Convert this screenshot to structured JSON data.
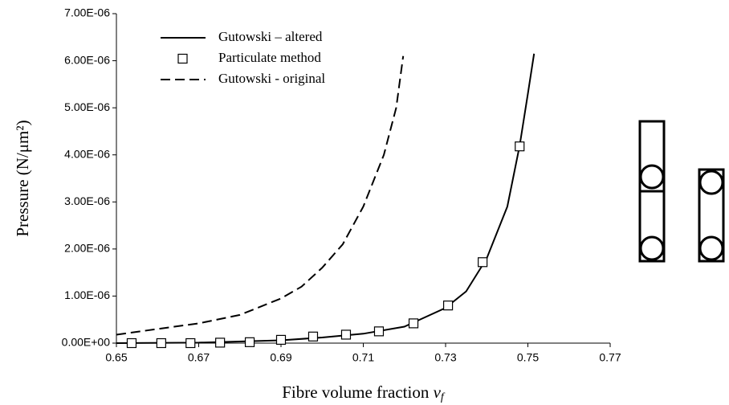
{
  "chart_data": {
    "type": "line",
    "x_label": {
      "text": "Fibre volume fraction",
      "symbol": "v",
      "subscript": "f"
    },
    "y_label": "Pressure (N/μm²)",
    "xlim": [
      0.65,
      0.77
    ],
    "xticks": [
      0.65,
      0.67,
      0.69,
      0.71,
      0.73,
      0.75,
      0.77
    ],
    "ylim": [
      0,
      7e-06
    ],
    "yticks": [
      {
        "value": 0,
        "label": "0.00E+00"
      },
      {
        "value": 1e-06,
        "label": "1.00E-06"
      },
      {
        "value": 2e-06,
        "label": "2.00E-06"
      },
      {
        "value": 3e-06,
        "label": "3.00E-06"
      },
      {
        "value": 4e-06,
        "label": "4.00E-06"
      },
      {
        "value": 5e-06,
        "label": "5.00E-06"
      },
      {
        "value": 6e-06,
        "label": "6.00E-06"
      },
      {
        "value": 7e-06,
        "label": "7.00E-06"
      }
    ],
    "legend": "top-left",
    "series": [
      {
        "name": "Gutowski – altered",
        "style": "solid",
        "color": "#000000",
        "x": [
          0.65,
          0.67,
          0.69,
          0.7,
          0.71,
          0.72,
          0.73,
          0.735,
          0.74,
          0.745,
          0.748,
          0.75,
          0.7515
        ],
        "values": [
          0,
          1e-08,
          6e-08,
          1.2e-07,
          2e-07,
          3.5e-07,
          7.5e-07,
          1.1e-06,
          1.8e-06,
          2.9e-06,
          4.2e-06,
          5.3e-06,
          6.15e-06
        ]
      },
      {
        "name": "Particulate method",
        "style": "markers",
        "color": "#000000",
        "x": [
          0.6537,
          0.6609,
          0.668,
          0.6752,
          0.6824,
          0.69,
          0.6978,
          0.7058,
          0.7138,
          0.7222,
          0.7306,
          0.739,
          0.748
        ],
        "values": [
          0,
          0,
          0,
          1e-08,
          2e-08,
          7e-08,
          1.4e-07,
          1.8e-07,
          2.5e-07,
          4.2e-07,
          8e-07,
          1.72e-06,
          4.18e-06
        ]
      },
      {
        "name": "Gutowski - original",
        "style": "dashed",
        "color": "#000000",
        "x": [
          0.65,
          0.66,
          0.67,
          0.68,
          0.69,
          0.695,
          0.7,
          0.705,
          0.71,
          0.715,
          0.718,
          0.7197
        ],
        "values": [
          1.8e-07,
          3e-07,
          4.2e-07,
          6e-07,
          9.5e-07,
          1.2e-06,
          1.6e-06,
          2.1e-06,
          2.9e-06,
          4e-06,
          5e-06,
          6.1e-06
        ]
      }
    ]
  }
}
